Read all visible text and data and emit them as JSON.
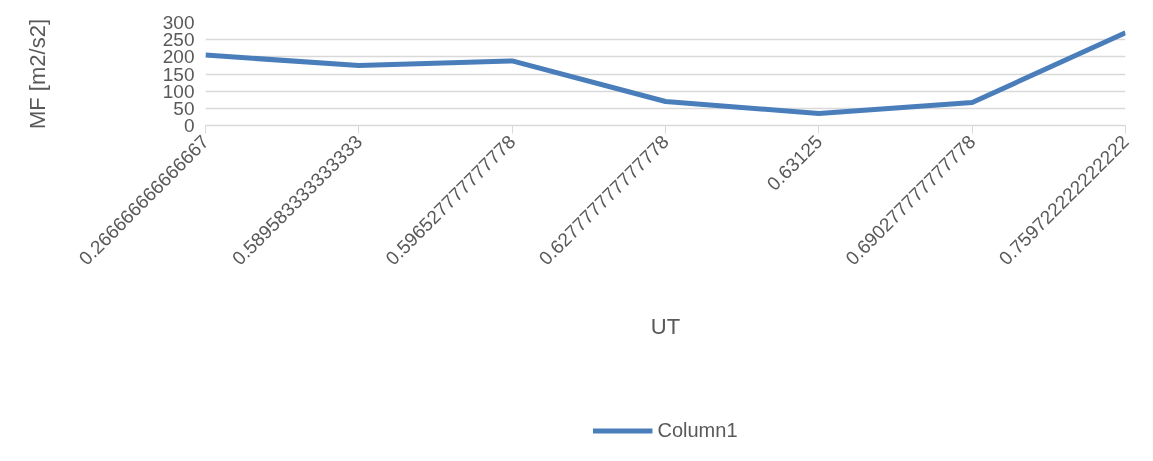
{
  "chart_data": {
    "type": "line",
    "xlabel": "UT",
    "ylabel": "MF [m2/s2]",
    "categories": [
      "0.266666666666667",
      "0.589583333333333",
      "0.596527777777778",
      "0.627777777777778",
      "0.63125",
      "0.690277777777778",
      "0.759722222222222"
    ],
    "series": [
      {
        "name": "Column1",
        "color": "#4a7ebb",
        "values": [
          205,
          175,
          188,
          70,
          35,
          67,
          270
        ]
      }
    ],
    "ylim": [
      0,
      300
    ],
    "yticks": [
      0,
      50,
      100,
      150,
      200,
      250,
      300
    ],
    "grid": "y",
    "legend": "bottom",
    "marker": "none",
    "line_style": "solid"
  }
}
